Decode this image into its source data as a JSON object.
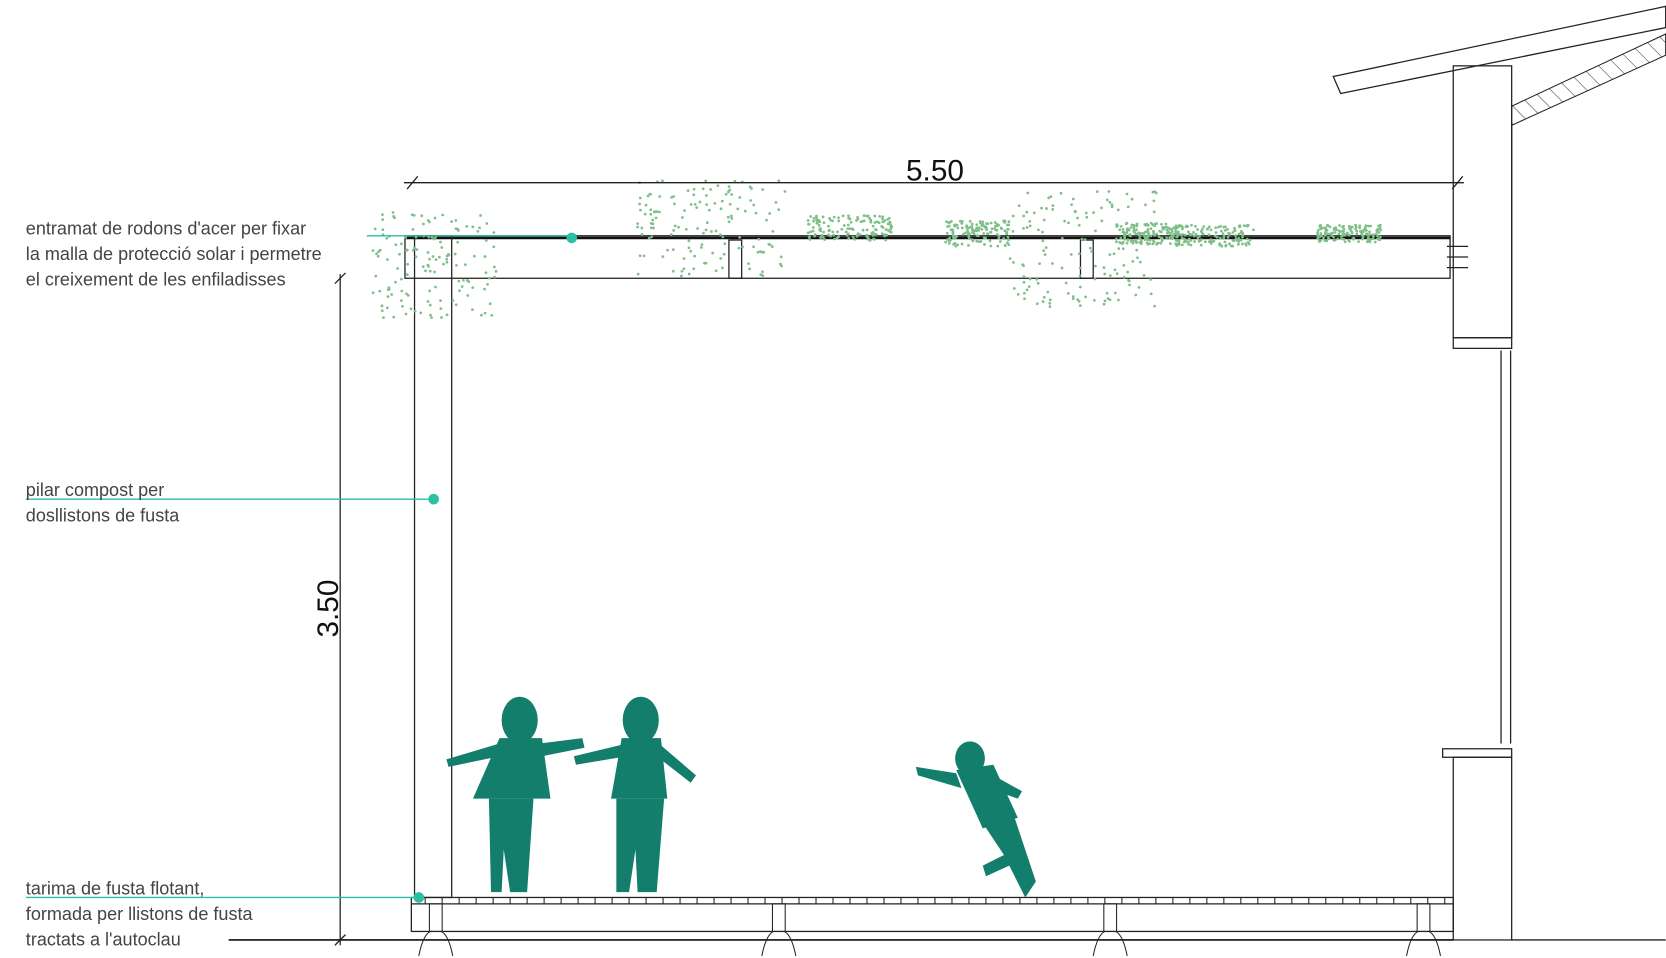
{
  "dimensions": {
    "width": "5.50",
    "height": "3.50"
  },
  "annotations": [
    {
      "lines": [
        "entramat de rodons d'acer per fixar",
        "la malla de protecció solar i permetre",
        "el creixement de les enfiladisses"
      ]
    },
    {
      "lines": [
        "pilar compost per",
        "dosllistons de fusta"
      ]
    },
    {
      "lines": [
        "tarima de fusta flotant,",
        "formada per llistons de fusta",
        "tractats a l'autoclau"
      ]
    }
  ]
}
